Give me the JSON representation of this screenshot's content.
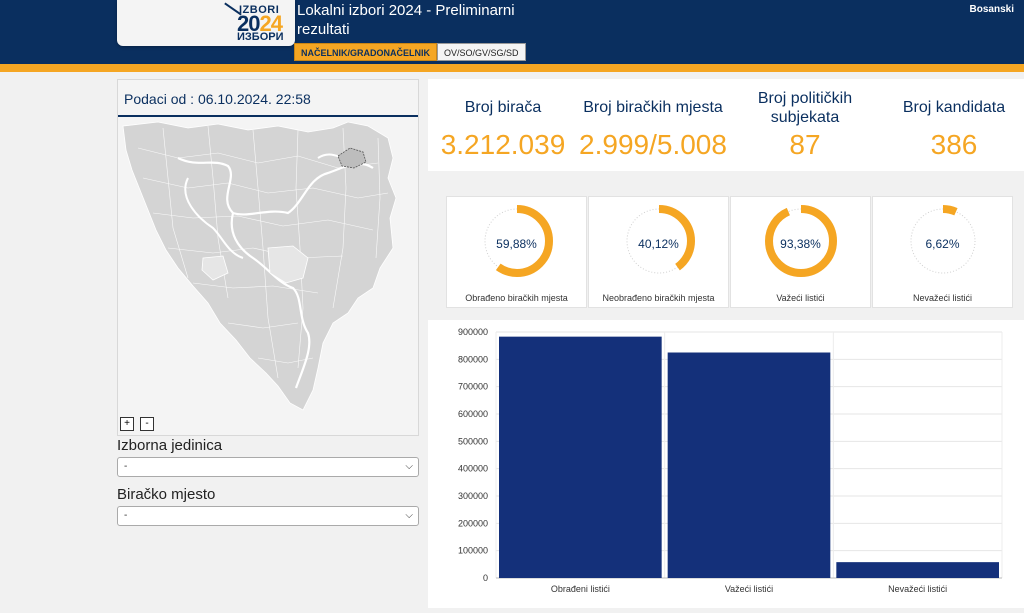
{
  "header": {
    "title": "Lokalni izbori 2024 - Preliminarni rezultati",
    "language": "Bosanski",
    "logo": {
      "line1": "IZBORI",
      "year_a": "20",
      "year_b": "24",
      "line3": "ИЗБОРИ"
    },
    "tabs": [
      {
        "label": "NAČELNIK/GRADONAČELNIK",
        "active": true
      },
      {
        "label": "OV/SO/GV/SG/SD",
        "active": false
      }
    ]
  },
  "map": {
    "date_label": "Podaci od : 06.10.2024. 22:58",
    "zoom_in": "+",
    "zoom_out": "-"
  },
  "filters": {
    "izborna_jedinica": {
      "label": "Izborna jedinica",
      "value": "-"
    },
    "biracko_mjesto": {
      "label": "Biračko mjesto",
      "value": "-"
    }
  },
  "stats": [
    {
      "label": "Broj birača",
      "value": "3.212.039"
    },
    {
      "label": "Broj biračkih mjesta",
      "value": "2.999/5.008"
    },
    {
      "label": "Broj političkih subjekata",
      "value": "87"
    },
    {
      "label": "Broj kandidata",
      "value": "386"
    }
  ],
  "gauges": [
    {
      "percent_label": "59,88%",
      "value": 59.88,
      "label": "Obrađeno biračkih mjesta"
    },
    {
      "percent_label": "40,12%",
      "value": 40.12,
      "label": "Neobrađeno biračkih mjesta"
    },
    {
      "percent_label": "93,38%",
      "value": 93.38,
      "label": "Važeći listići"
    },
    {
      "percent_label": "6,62%",
      "value": 6.62,
      "label": "Nevažeći listići"
    }
  ],
  "colors": {
    "navy": "#0a2f5f",
    "orange": "#f5a623",
    "bar": "#14307a",
    "map_fill": "#d4d4d4"
  },
  "chart_data": {
    "type": "bar",
    "categories": [
      "Obrađeni listići",
      "Važeći listići",
      "Nevažeći listići"
    ],
    "values": [
      883000,
      825000,
      58000
    ],
    "ylim": [
      0,
      900000
    ],
    "yticks": [
      "0",
      "100000",
      "200000",
      "300000",
      "400000",
      "500000",
      "600000",
      "700000",
      "800000",
      "900000"
    ],
    "grid": true,
    "title": "",
    "xlabel": "",
    "ylabel": ""
  }
}
